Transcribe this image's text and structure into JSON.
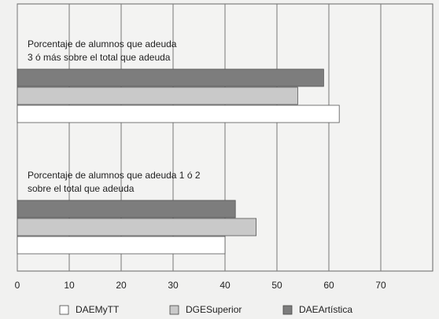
{
  "chart_data": {
    "type": "hbar",
    "categories": [
      [
        "Porcentaje de alumnos que  adeuda",
        "3 ó más sobre el total que adeuda"
      ],
      [
        "Porcentaje de alumnos que  adeuda 1 ó 2",
        "sobre el total que adeuda"
      ]
    ],
    "series": [
      {
        "name": "DAEMyTT",
        "color": "#ffffff",
        "values": [
          62,
          40
        ]
      },
      {
        "name": "DGESuperior",
        "color": "#c9c9c9",
        "values": [
          54,
          46
        ]
      },
      {
        "name": "DAEArtística",
        "color": "#7d7d7d",
        "values": [
          59,
          42
        ]
      }
    ],
    "xlim": [
      0,
      80
    ],
    "xticks": [
      0,
      10,
      20,
      30,
      40,
      50,
      60,
      70
    ],
    "grid": true,
    "legend": "bottom"
  }
}
